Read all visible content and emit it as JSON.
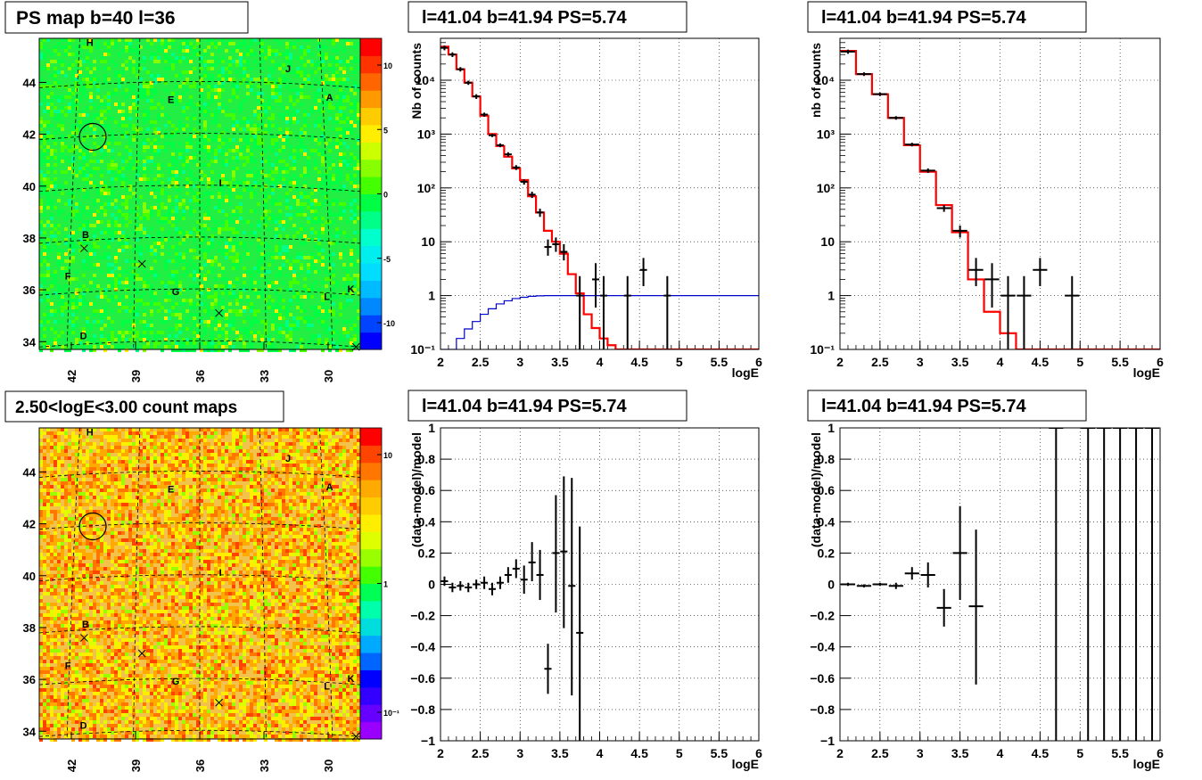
{
  "titles": {
    "ps_map": "PS map b=40 l=36",
    "count_map": "2.50<logE<3.00 count maps",
    "spectrum_1": "l=41.04 b=41.94 PS=5.74",
    "spectrum_2": "l=41.04 b=41.94 PS=5.74",
    "residual_1": "l=41.04 b=41.94 PS=5.74",
    "residual_2": "l=41.04 b=41.94 PS=5.74"
  },
  "map_axes": {
    "x_ticks": [
      "42",
      "39",
      "36",
      "33",
      "30"
    ],
    "y_ticks": [
      "44",
      "42",
      "40",
      "38",
      "36",
      "34"
    ],
    "source_labels": [
      {
        "label": "H",
        "l": 41.3,
        "b": 45.4
      },
      {
        "label": "J",
        "l": 32.0,
        "b": 44.4
      },
      {
        "label": "A",
        "l": 30.1,
        "b": 43.3
      },
      {
        "label": "E",
        "l": 37.5,
        "b": 43.2
      },
      {
        "label": "I",
        "l": 35.1,
        "b": 40.0
      },
      {
        "label": "B",
        "l": 41.5,
        "b": 38.0
      },
      {
        "label": "F",
        "l": 42.3,
        "b": 36.4
      },
      {
        "label": "G",
        "l": 37.3,
        "b": 35.8
      },
      {
        "label": "L",
        "l": 30.2,
        "b": 35.6
      },
      {
        "label": "K",
        "l": 29.1,
        "b": 35.9
      },
      {
        "label": "D",
        "l": 41.6,
        "b": 34.1
      }
    ]
  },
  "colors": {
    "ps_map_bg": "#22ee44",
    "count_map_bg": "#f2c24a",
    "data_points": "#000000",
    "model_fit": "#ff0000",
    "acceptance": "#0000cc",
    "grid": "#000000"
  },
  "palettes": {
    "ps_scale": [
      "#0000ff",
      "#0044ff",
      "#0088ff",
      "#00bbff",
      "#00ddff",
      "#00eeee",
      "#00ffcc",
      "#00ff88",
      "#00ff44",
      "#44ff00",
      "#88ff00",
      "#ccff00",
      "#ffee00",
      "#ffcc00",
      "#ff9900",
      "#ff6600",
      "#ff3300",
      "#ff0000"
    ],
    "count_scale": [
      "#9900ff",
      "#6600ff",
      "#3300ff",
      "#0000ff",
      "#0066ff",
      "#00aaff",
      "#00dddd",
      "#00ffaa",
      "#00ff55",
      "#44ff00",
      "#99ff00",
      "#ddff00",
      "#ffee00",
      "#ffcc00",
      "#ffaa00",
      "#ff7700",
      "#ff4400",
      "#ff0000"
    ]
  },
  "colorbars": {
    "ps_scale_labels": [
      "10",
      "5",
      "0",
      "-5",
      "-10"
    ],
    "count_scale_labels": [
      "10",
      "1",
      "10⁻¹"
    ]
  },
  "chart_data": [
    {
      "id": "spectrum_full",
      "type": "line",
      "title": "l=41.04 b=41.94 PS=5.74",
      "xlabel": "logE",
      "ylabel": "Nb of counts",
      "xlim": [
        2,
        6
      ],
      "ylim": [
        0.1,
        60000
      ],
      "ylog": true,
      "grid": true,
      "x_ticks": [
        "2",
        "2.5",
        "3",
        "3.5",
        "4",
        "4.5",
        "5",
        "5.5",
        "6"
      ],
      "y_ticks": [
        "10⁻¹",
        "1",
        "10",
        "10²",
        "10³",
        "10⁴"
      ],
      "series": [
        {
          "role": "model",
          "color": "#ff0000",
          "kind": "step",
          "edges": [
            2.0,
            2.1,
            2.2,
            2.3,
            2.4,
            2.5,
            2.6,
            2.7,
            2.8,
            2.9,
            3.0,
            3.1,
            3.2,
            3.3,
            3.4,
            3.5,
            3.6,
            3.7,
            3.8,
            3.9,
            4.0,
            4.1,
            4.2,
            6.0
          ],
          "values": [
            42000,
            30000,
            16000,
            9000,
            5000,
            2200,
            1000,
            600,
            380,
            230,
            140,
            70,
            35,
            16,
            10,
            6,
            2.5,
            1.1,
            0.45,
            0.25,
            0.16,
            0.12,
            0.1
          ]
        },
        {
          "role": "acceptance",
          "color": "#0000cc",
          "kind": "step",
          "edges": [
            2.0,
            2.1,
            2.2,
            2.3,
            2.4,
            2.5,
            2.6,
            2.7,
            2.8,
            2.9,
            3.0,
            3.1,
            3.2,
            3.3,
            3.4,
            3.5,
            6.0
          ],
          "values": [
            0.03,
            0.1,
            0.16,
            0.24,
            0.33,
            0.45,
            0.57,
            0.7,
            0.8,
            0.88,
            0.93,
            0.97,
            0.99,
            1.0,
            1.0,
            1.0
          ]
        },
        {
          "role": "data",
          "color": "#000000",
          "kind": "points",
          "points": [
            {
              "x": 2.05,
              "y": 40000,
              "lo": 36000,
              "hi": 44000
            },
            {
              "x": 2.15,
              "y": 30000,
              "lo": 27000,
              "hi": 33000
            },
            {
              "x": 2.25,
              "y": 16000,
              "lo": 14500,
              "hi": 17500
            },
            {
              "x": 2.35,
              "y": 9000,
              "lo": 8200,
              "hi": 9800
            },
            {
              "x": 2.45,
              "y": 5000,
              "lo": 4500,
              "hi": 5500
            },
            {
              "x": 2.55,
              "y": 2300,
              "lo": 2100,
              "hi": 2500
            },
            {
              "x": 2.65,
              "y": 950,
              "lo": 880,
              "hi": 1020
            },
            {
              "x": 2.75,
              "y": 620,
              "lo": 570,
              "hi": 670
            },
            {
              "x": 2.85,
              "y": 420,
              "lo": 380,
              "hi": 460
            },
            {
              "x": 2.95,
              "y": 240,
              "lo": 215,
              "hi": 265
            },
            {
              "x": 3.05,
              "y": 130,
              "lo": 115,
              "hi": 145
            },
            {
              "x": 3.15,
              "y": 75,
              "lo": 65,
              "hi": 85
            },
            {
              "x": 3.25,
              "y": 35,
              "lo": 29,
              "hi": 41
            },
            {
              "x": 3.35,
              "y": 8,
              "lo": 5.5,
              "hi": 11
            },
            {
              "x": 3.45,
              "y": 9,
              "lo": 6.5,
              "hi": 12
            },
            {
              "x": 3.55,
              "y": 6.5,
              "lo": 4.5,
              "hi": 9
            },
            {
              "x": 3.75,
              "y": 1,
              "lo": 0.1,
              "hi": 2.3
            },
            {
              "x": 3.95,
              "y": 2,
              "lo": 0.6,
              "hi": 4
            },
            {
              "x": 4.05,
              "y": 1,
              "lo": 0.1,
              "hi": 2.3
            },
            {
              "x": 4.35,
              "y": 1,
              "lo": 0.1,
              "hi": 2.3
            },
            {
              "x": 4.55,
              "y": 3,
              "lo": 1.5,
              "hi": 5
            },
            {
              "x": 4.85,
              "y": 1,
              "lo": 0.1,
              "hi": 2.3
            }
          ]
        }
      ]
    },
    {
      "id": "spectrum_coarse",
      "type": "line",
      "title": "l=41.04 b=41.94 PS=5.74",
      "xlabel": "logE",
      "ylabel": "nb of counts",
      "xlim": [
        2,
        6
      ],
      "ylim": [
        0.1,
        60000
      ],
      "ylog": true,
      "grid": true,
      "x_ticks": [
        "2",
        "2.5",
        "3",
        "3.5",
        "4",
        "4.5",
        "5",
        "5.5",
        "6"
      ],
      "y_ticks": [
        "10⁻¹",
        "1",
        "10",
        "10²",
        "10³",
        "10⁴"
      ],
      "series": [
        {
          "role": "model",
          "color": "#ff0000",
          "kind": "step",
          "edges": [
            2.0,
            2.2,
            2.4,
            2.6,
            2.8,
            3.0,
            3.2,
            3.4,
            3.6,
            3.8,
            4.0,
            4.2,
            6.0
          ],
          "values": [
            35000,
            13000,
            5500,
            2000,
            620,
            200,
            48,
            15,
            2,
            0.5,
            0.2,
            0.1
          ]
        },
        {
          "role": "data",
          "color": "#000000",
          "kind": "points",
          "points": [
            {
              "x": 2.1,
              "y": 34000,
              "lo": 31000,
              "hi": 37000
            },
            {
              "x": 2.3,
              "y": 13000,
              "lo": 12000,
              "hi": 14000
            },
            {
              "x": 2.5,
              "y": 5500,
              "lo": 5100,
              "hi": 5900
            },
            {
              "x": 2.7,
              "y": 2000,
              "lo": 1850,
              "hi": 2150
            },
            {
              "x": 2.9,
              "y": 640,
              "lo": 590,
              "hi": 690
            },
            {
              "x": 3.1,
              "y": 210,
              "lo": 190,
              "hi": 230
            },
            {
              "x": 3.3,
              "y": 42,
              "lo": 36,
              "hi": 48
            },
            {
              "x": 3.5,
              "y": 16,
              "lo": 12,
              "hi": 20
            },
            {
              "x": 3.7,
              "y": 3,
              "lo": 1.5,
              "hi": 5
            },
            {
              "x": 3.9,
              "y": 2,
              "lo": 0.6,
              "hi": 4
            },
            {
              "x": 4.1,
              "y": 1,
              "lo": 0.1,
              "hi": 2.3
            },
            {
              "x": 4.3,
              "y": 1,
              "lo": 0.1,
              "hi": 2.3
            },
            {
              "x": 4.5,
              "y": 3,
              "lo": 1.5,
              "hi": 5
            },
            {
              "x": 4.9,
              "y": 1,
              "lo": 0.1,
              "hi": 2.3
            }
          ]
        }
      ]
    },
    {
      "id": "residual_full",
      "type": "scatter",
      "title": "l=41.04 b=41.94 PS=5.74",
      "xlabel": "logE",
      "ylabel": "(data-model)/model",
      "xlim": [
        2,
        6
      ],
      "ylim": [
        -1,
        1
      ],
      "grid": true,
      "x_ticks": [
        "2",
        "2.5",
        "3",
        "3.5",
        "4",
        "4.5",
        "5",
        "5.5",
        "6"
      ],
      "y_ticks": [
        "1",
        "0.8",
        "0.6",
        "0.4",
        "0.2",
        "0",
        "-0.2",
        "-0.4",
        "-0.6",
        "-0.8",
        "-1"
      ],
      "points": [
        {
          "x": 2.05,
          "y": 0.02,
          "lo": -0.01,
          "hi": 0.05
        },
        {
          "x": 2.15,
          "y": -0.02,
          "lo": -0.05,
          "hi": 0.01
        },
        {
          "x": 2.25,
          "y": -0.01,
          "lo": -0.04,
          "hi": 0.02
        },
        {
          "x": 2.35,
          "y": -0.02,
          "lo": -0.05,
          "hi": 0.01
        },
        {
          "x": 2.45,
          "y": 0.0,
          "lo": -0.03,
          "hi": 0.03
        },
        {
          "x": 2.55,
          "y": 0.01,
          "lo": -0.03,
          "hi": 0.05
        },
        {
          "x": 2.65,
          "y": -0.03,
          "lo": -0.07,
          "hi": 0.01
        },
        {
          "x": 2.75,
          "y": 0.01,
          "lo": -0.03,
          "hi": 0.05
        },
        {
          "x": 2.85,
          "y": 0.06,
          "lo": 0.01,
          "hi": 0.11
        },
        {
          "x": 2.95,
          "y": 0.1,
          "lo": 0.04,
          "hi": 0.16
        },
        {
          "x": 3.05,
          "y": 0.03,
          "lo": -0.06,
          "hi": 0.12
        },
        {
          "x": 3.15,
          "y": 0.14,
          "lo": 0.02,
          "hi": 0.27
        },
        {
          "x": 3.25,
          "y": 0.06,
          "lo": -0.1,
          "hi": 0.22
        },
        {
          "x": 3.35,
          "y": -0.54,
          "lo": -0.7,
          "hi": -0.38
        },
        {
          "x": 3.45,
          "y": 0.2,
          "lo": -0.18,
          "hi": 0.57
        },
        {
          "x": 3.55,
          "y": 0.21,
          "lo": -0.28,
          "hi": 0.69
        },
        {
          "x": 3.65,
          "y": -0.01,
          "lo": -0.71,
          "hi": 0.68
        },
        {
          "x": 3.75,
          "y": -0.31,
          "lo": -1.0,
          "hi": 0.37
        }
      ]
    },
    {
      "id": "residual_coarse",
      "type": "scatter",
      "title": "l=41.04 b=41.94 PS=5.74",
      "xlabel": "logE",
      "ylabel": "(data-model)/model",
      "xlim": [
        2,
        6
      ],
      "ylim": [
        -1,
        1
      ],
      "grid": true,
      "x_ticks": [
        "2",
        "2.5",
        "3",
        "3.5",
        "4",
        "4.5",
        "5",
        "5.5",
        "6"
      ],
      "y_ticks": [
        "1",
        "0.8",
        "0.6",
        "0.4",
        "0.2",
        "0",
        "-0.2",
        "-0.4",
        "-0.6",
        "-0.8",
        "-1"
      ],
      "points": [
        {
          "x": 2.1,
          "y": 0.0,
          "lo": -0.01,
          "hi": 0.01
        },
        {
          "x": 2.3,
          "y": -0.01,
          "lo": -0.02,
          "hi": 0.0
        },
        {
          "x": 2.5,
          "y": 0.0,
          "lo": -0.01,
          "hi": 0.01
        },
        {
          "x": 2.7,
          "y": -0.01,
          "lo": -0.03,
          "hi": 0.01
        },
        {
          "x": 2.9,
          "y": 0.07,
          "lo": 0.03,
          "hi": 0.11
        },
        {
          "x": 3.1,
          "y": 0.06,
          "lo": -0.02,
          "hi": 0.14
        },
        {
          "x": 3.3,
          "y": -0.15,
          "lo": -0.27,
          "hi": -0.03
        },
        {
          "x": 3.5,
          "y": 0.2,
          "lo": -0.1,
          "hi": 0.5
        },
        {
          "x": 3.7,
          "y": -0.14,
          "lo": -0.64,
          "hi": 0.35
        },
        {
          "x": 4.7,
          "y": 1,
          "lo": -1,
          "hi": 1
        },
        {
          "x": 5.1,
          "y": 1,
          "lo": -1,
          "hi": 1
        },
        {
          "x": 5.3,
          "y": 1,
          "lo": -1,
          "hi": 1
        },
        {
          "x": 5.5,
          "y": 1,
          "lo": -1,
          "hi": 1
        },
        {
          "x": 5.7,
          "y": 1,
          "lo": -1,
          "hi": 1
        },
        {
          "x": 5.9,
          "y": 1,
          "lo": -1,
          "hi": 1
        }
      ]
    }
  ]
}
